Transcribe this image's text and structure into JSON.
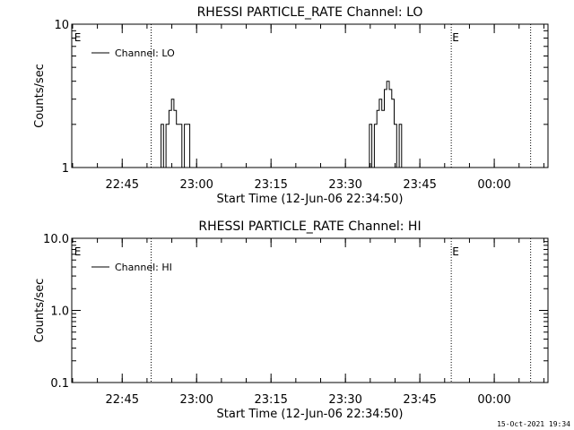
{
  "charts": [
    {
      "type": "line",
      "title": "RHESSI PARTICLE_RATE Channel: LO",
      "xlabel": "Start Time (12-Jun-06 22:34:50)",
      "ylabel": "Counts/sec",
      "y_scale": "log",
      "ylim": [
        1,
        10
      ],
      "y_ticks": [
        1,
        10
      ],
      "y_tick_labels": [
        "1",
        "10"
      ],
      "xlim_minutes": [
        0,
        96
      ],
      "x_ticks_minutes": [
        10.17,
        25.17,
        40.17,
        55.17,
        70.17,
        85.17
      ],
      "x_tick_labels": [
        "22:45",
        "23:00",
        "23:15",
        "23:30",
        "23:45",
        "00:00"
      ],
      "event_lines_minutes": [
        16.0,
        76.5,
        92.5
      ],
      "event_markers": [
        {
          "label": "E",
          "x_minutes": 0.5
        },
        {
          "label": "E",
          "x_minutes": 76.7
        }
      ],
      "legend": {
        "position": "top-left",
        "entries": [
          "Channel: LO"
        ]
      },
      "series": [
        {
          "name": "Channel: LO",
          "points": [
            [
              0,
              1
            ],
            [
              18.0,
              1
            ],
            [
              18.0,
              2
            ],
            [
              18.5,
              2
            ],
            [
              18.5,
              1
            ],
            [
              19.0,
              1
            ],
            [
              19.0,
              2
            ],
            [
              19.6,
              2
            ],
            [
              19.6,
              2.5
            ],
            [
              20.1,
              2.5
            ],
            [
              20.1,
              3
            ],
            [
              20.6,
              3
            ],
            [
              20.6,
              2.5
            ],
            [
              21.1,
              2.5
            ],
            [
              21.1,
              2
            ],
            [
              22.2,
              2
            ],
            [
              22.2,
              1
            ],
            [
              22.7,
              1
            ],
            [
              22.7,
              2
            ],
            [
              23.8,
              2
            ],
            [
              23.8,
              1
            ],
            [
              60.0,
              1
            ],
            [
              60.0,
              2
            ],
            [
              60.5,
              2
            ],
            [
              60.5,
              1
            ],
            [
              61.0,
              1
            ],
            [
              61.0,
              2
            ],
            [
              61.5,
              2
            ],
            [
              61.5,
              2.5
            ],
            [
              62.0,
              2.5
            ],
            [
              62.0,
              3
            ],
            [
              62.5,
              3
            ],
            [
              62.5,
              2.5
            ],
            [
              63.0,
              2.5
            ],
            [
              63.0,
              3.5
            ],
            [
              63.5,
              3.5
            ],
            [
              63.5,
              4
            ],
            [
              64.0,
              4
            ],
            [
              64.0,
              3.5
            ],
            [
              64.5,
              3.5
            ],
            [
              64.5,
              3
            ],
            [
              65.0,
              3
            ],
            [
              65.0,
              2
            ],
            [
              65.5,
              2
            ],
            [
              65.5,
              1
            ],
            [
              66.0,
              1
            ],
            [
              66.0,
              2
            ],
            [
              66.5,
              2
            ],
            [
              66.5,
              1
            ],
            [
              96,
              1
            ]
          ]
        }
      ]
    },
    {
      "type": "line",
      "title": "RHESSI PARTICLE_RATE Channel: HI",
      "xlabel": "Start Time (12-Jun-06 22:34:50)",
      "ylabel": "Counts/sec",
      "y_scale": "log",
      "ylim": [
        0.1,
        10
      ],
      "y_ticks": [
        0.1,
        1,
        10
      ],
      "y_tick_labels": [
        "0.1",
        "1.0",
        "10.0"
      ],
      "xlim_minutes": [
        0,
        96
      ],
      "x_ticks_minutes": [
        10.17,
        25.17,
        40.17,
        55.17,
        70.17,
        85.17
      ],
      "x_tick_labels": [
        "22:45",
        "23:00",
        "23:15",
        "23:30",
        "23:45",
        "00:00"
      ],
      "event_lines_minutes": [
        16.0,
        76.5,
        92.5
      ],
      "event_markers": [
        {
          "label": "E",
          "x_minutes": 0.5
        },
        {
          "label": "E",
          "x_minutes": 76.7
        }
      ],
      "legend": {
        "position": "top-left",
        "entries": [
          "Channel: HI"
        ]
      },
      "series": [
        {
          "name": "Channel: HI",
          "points": []
        }
      ]
    }
  ],
  "footer": {
    "timestamp": "15-Oct-2021 19:34"
  }
}
